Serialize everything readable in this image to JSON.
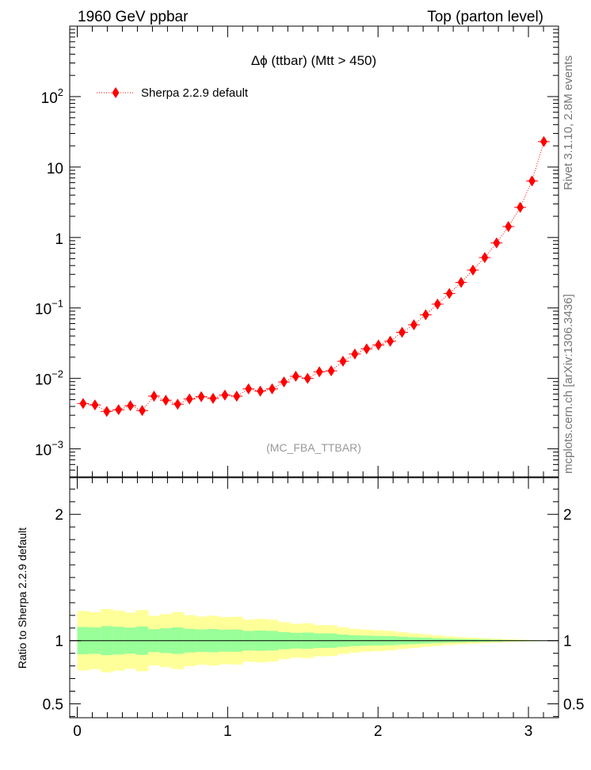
{
  "header": {
    "left": "1960 GeV ppbar",
    "right": "Top (parton level)"
  },
  "side_labels": {
    "rivet": "Rivet 3.1.10, 2.8M events",
    "mcplots": "mcplots.cern.ch [arXiv:1306.3436]"
  },
  "colors": {
    "series": "#ff0000",
    "band_outer": "#ffff99",
    "band_inner": "#99ff99",
    "axis": "#000000",
    "watermark": "#999999"
  },
  "chart_data": [
    {
      "type": "scatter",
      "title": "Δϕ (ttbar) (Mtt > 450)",
      "watermark": "(MC_FBA_TTBAR)",
      "yscale": "log",
      "xlim": [
        -0.05,
        3.2
      ],
      "ylim": [
        0.0004,
        1000
      ],
      "ytick_labels": [
        {
          "value": 0.001,
          "base": "10",
          "exp": "−3"
        },
        {
          "value": 0.01,
          "base": "10",
          "exp": "−2"
        },
        {
          "value": 0.1,
          "base": "10",
          "exp": "−1"
        },
        {
          "value": 1,
          "base": "1",
          "exp": ""
        },
        {
          "value": 10,
          "base": "10",
          "exp": ""
        },
        {
          "value": 100,
          "base": "10",
          "exp": "2"
        }
      ],
      "legend": {
        "position": "top-left"
      },
      "series": [
        {
          "name": "Sherpa 2.2.9 default",
          "style": "red diamonds, dotted line",
          "x": [
            0.0393,
            0.1178,
            0.1963,
            0.2749,
            0.3534,
            0.432,
            0.5105,
            0.589,
            0.6676,
            0.7461,
            0.8247,
            0.9032,
            0.9817,
            1.0603,
            1.1388,
            1.2174,
            1.2959,
            1.3744,
            1.453,
            1.5315,
            1.6101,
            1.6886,
            1.7671,
            1.8457,
            1.9242,
            2.0028,
            2.0813,
            2.1598,
            2.2384,
            2.3169,
            2.3955,
            2.474,
            2.5525,
            2.6311,
            2.7096,
            2.7882,
            2.8667,
            2.9452,
            3.0238,
            3.1023
          ],
          "y": [
            0.0044,
            0.0042,
            0.0034,
            0.0036,
            0.0041,
            0.0035,
            0.0056,
            0.0049,
            0.0043,
            0.0051,
            0.0055,
            0.0052,
            0.0058,
            0.0056,
            0.0071,
            0.0066,
            0.0071,
            0.0089,
            0.0107,
            0.01,
            0.0124,
            0.0128,
            0.0175,
            0.0222,
            0.0263,
            0.0298,
            0.0337,
            0.0451,
            0.0577,
            0.08,
            0.1133,
            0.1601,
            0.2305,
            0.3444,
            0.519,
            0.8374,
            1.4291,
            2.6765,
            6.3497,
            22.9541
          ],
          "yerr": [
            0.0005,
            0.0005,
            0.0004,
            0.0004,
            0.0005,
            0.0004,
            0.0006,
            0.0005,
            0.0005,
            0.0005,
            0.0006,
            0.0005,
            0.0006,
            0.0006,
            0.0007,
            0.0006,
            0.0007,
            0.0008,
            0.0009,
            0.0009,
            0.001,
            0.001,
            0.0013,
            0.0015,
            0.0017,
            0.0018,
            0.002,
            0.0024,
            0.0028,
            0.0035,
            0.0045,
            0.0058,
            0.0075,
            0.01,
            0.013,
            0.018,
            0.026,
            0.04,
            0.07,
            0.15
          ]
        }
      ]
    },
    {
      "type": "area",
      "ylabel": "Ratio to Sherpa 2.2.9 default",
      "xlim": [
        -0.05,
        3.2
      ],
      "ylim": [
        0.39,
        2.29
      ],
      "xticks": [
        0,
        1,
        2,
        3
      ],
      "yticks": [
        0.5,
        1,
        2
      ],
      "reference_line": 1,
      "bands": {
        "inner_halfwidth": [
          0.108,
          0.104,
          0.115,
          0.11,
          0.103,
          0.112,
          0.091,
          0.098,
          0.105,
          0.094,
          0.089,
          0.092,
          0.087,
          0.088,
          0.077,
          0.08,
          0.077,
          0.068,
          0.062,
          0.064,
          0.058,
          0.057,
          0.049,
          0.043,
          0.04,
          0.038,
          0.036,
          0.031,
          0.027,
          0.023,
          0.019,
          0.016,
          0.013,
          0.011,
          0.009,
          0.007,
          0.005,
          0.004,
          0.003,
          0.002
        ],
        "outer_halfwidth": [
          0.235,
          0.226,
          0.25,
          0.238,
          0.222,
          0.242,
          0.196,
          0.21,
          0.226,
          0.202,
          0.191,
          0.197,
          0.187,
          0.189,
          0.166,
          0.172,
          0.166,
          0.147,
          0.134,
          0.138,
          0.124,
          0.122,
          0.105,
          0.094,
          0.087,
          0.082,
          0.077,
          0.066,
          0.058,
          0.049,
          0.041,
          0.034,
          0.028,
          0.023,
          0.019,
          0.015,
          0.011,
          0.008,
          0.005,
          0.003
        ]
      }
    }
  ]
}
